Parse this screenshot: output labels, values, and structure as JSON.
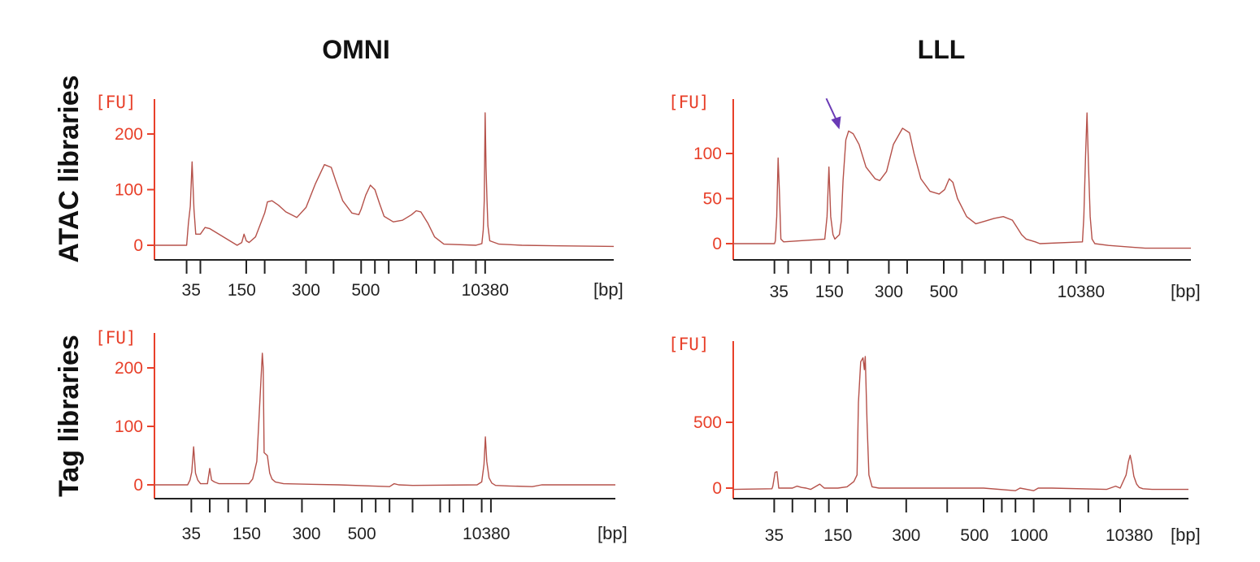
{
  "figure": {
    "column_titles": [
      "OMNI",
      "LLL"
    ],
    "row_labels": [
      "ATAC libraries",
      "Tag libraries"
    ],
    "colors": {
      "axis_y": "#e8402a",
      "trace": "#b5514a",
      "axis_x": "#222222",
      "arrow": "#6a3ab5",
      "text": "#111111"
    }
  },
  "chart_data": [
    {
      "id": "omni-atac",
      "type": "line",
      "title": "",
      "ylabel": "[FU]",
      "xlabel": "[bp]",
      "ylim": [
        -25,
        260
      ],
      "yticks": [
        0,
        100,
        200
      ],
      "xlim": [
        0,
        100
      ],
      "tick_positions": [
        7,
        10,
        20,
        24,
        33,
        39,
        45,
        48,
        51,
        57,
        61,
        65,
        70,
        72
      ],
      "tick_labels": [
        {
          "label": "35",
          "at": 8
        },
        {
          "label": "150",
          "at": 19
        },
        {
          "label": "300",
          "at": 33
        },
        {
          "label": "500",
          "at": 46
        },
        {
          "label": "10380",
          "at": 72
        }
      ],
      "series": [
        {
          "x": [
            0,
            7,
            7.4,
            7.8,
            8.2,
            8.6,
            9,
            10,
            11,
            12,
            18,
            19,
            19.5,
            20,
            20.6,
            22,
            24,
            24.6,
            25.6,
            27,
            28.6,
            31,
            33,
            35,
            37,
            38.5,
            39.5,
            41,
            43,
            44.5,
            45,
            46,
            47,
            48,
            49,
            50,
            52,
            54,
            56,
            57,
            58,
            59.5,
            61,
            63,
            70,
            71.3,
            71.6,
            71.8,
            72,
            72.2,
            72.4,
            72.6,
            73,
            75,
            80,
            88,
            100
          ],
          "y": [
            0,
            0,
            40,
            70,
            150,
            65,
            20,
            20,
            32,
            30,
            0,
            5,
            20,
            8,
            5,
            15,
            58,
            78,
            80,
            72,
            60,
            50,
            68,
            110,
            145,
            140,
            115,
            80,
            58,
            55,
            65,
            90,
            108,
            100,
            75,
            52,
            42,
            45,
            55,
            62,
            60,
            40,
            15,
            2,
            0,
            3,
            28,
            80,
            238,
            140,
            80,
            35,
            8,
            2,
            0,
            -1,
            -2
          ]
        }
      ],
      "annotations": []
    },
    {
      "id": "lll-atac",
      "type": "line",
      "title": "",
      "ylabel": "[FU]",
      "xlabel": "[bp]",
      "ylim": [
        -25,
        162
      ],
      "yticks": [
        0,
        50,
        100
      ],
      "xlim": [
        0,
        100
      ],
      "tick_positions": [
        9,
        12,
        17,
        21,
        25,
        34,
        38,
        46,
        50,
        55,
        59,
        65,
        70,
        75,
        77
      ],
      "tick_labels": [
        {
          "label": "35",
          "at": 10
        },
        {
          "label": "150",
          "at": 21
        },
        {
          "label": "300",
          "at": 34
        },
        {
          "label": "500",
          "at": 46
        },
        {
          "label": "10380",
          "at": 76
        }
      ],
      "series": [
        {
          "x": [
            0,
            9,
            9.2,
            9.5,
            9.8,
            10.1,
            10.4,
            11,
            20,
            20.5,
            20.9,
            21.3,
            21.8,
            22.2,
            23.2,
            23.6,
            24,
            24.6,
            25.2,
            26.2,
            27.5,
            29,
            31,
            32,
            33.5,
            35,
            37,
            38.5,
            39.5,
            41,
            43,
            45,
            46.2,
            47.2,
            48,
            49,
            51,
            53,
            55,
            57,
            59,
            61,
            62,
            63,
            64,
            66,
            67,
            76.3,
            76.6,
            77,
            77.3,
            77.6,
            78,
            78.4,
            79,
            82,
            90,
            100
          ],
          "y": [
            0,
            0,
            3,
            30,
            95,
            55,
            5,
            2,
            5,
            30,
            85,
            30,
            10,
            5,
            10,
            25,
            70,
            115,
            125,
            122,
            110,
            85,
            72,
            70,
            80,
            110,
            128,
            123,
            100,
            72,
            58,
            55,
            60,
            72,
            68,
            50,
            30,
            22,
            25,
            28,
            30,
            26,
            18,
            10,
            5,
            2,
            0,
            2,
            30,
            100,
            145,
            90,
            30,
            5,
            0,
            -2,
            -5,
            -5
          ]
        }
      ],
      "annotations": [
        {
          "type": "arrow",
          "at_x": 24.6,
          "at_y": 125
        }
      ]
    },
    {
      "id": "omni-tag",
      "type": "line",
      "title": "",
      "ylabel": "[FU]",
      "xlabel": "[bp]",
      "ylim": [
        -25,
        255
      ],
      "yticks": [
        0,
        100,
        200
      ],
      "xlim": [
        0,
        100
      ],
      "tick_positions": [
        8,
        12,
        16,
        20,
        24,
        32,
        39,
        45,
        48,
        51,
        56,
        62,
        64,
        67,
        71,
        73
      ],
      "tick_labels": [
        {
          "label": "35",
          "at": 8
        },
        {
          "label": "150",
          "at": 20
        },
        {
          "label": "300",
          "at": 33
        },
        {
          "label": "500",
          "at": 45
        },
        {
          "label": "10380",
          "at": 72
        }
      ],
      "series": [
        {
          "x": [
            0,
            7.2,
            7.7,
            8.1,
            8.5,
            8.9,
            9.4,
            10,
            11.5,
            12,
            12.4,
            13,
            14,
            20.5,
            21.3,
            22.2,
            23.4,
            23.6,
            23.8,
            24.5,
            25,
            25.5,
            26.2,
            28,
            40,
            51,
            52,
            53,
            56,
            70,
            71,
            71.5,
            71.8,
            72.1,
            72.6,
            73.2,
            74,
            77,
            82,
            84,
            100
          ],
          "y": [
            0,
            0,
            8,
            22,
            65,
            20,
            8,
            2,
            2,
            28,
            8,
            5,
            2,
            2,
            10,
            40,
            225,
            200,
            55,
            50,
            20,
            10,
            5,
            2,
            0,
            -3,
            2,
            0,
            -1,
            0,
            5,
            35,
            82,
            40,
            12,
            3,
            -1,
            -2,
            -3,
            0,
            0
          ]
        }
      ],
      "annotations": []
    },
    {
      "id": "lll-tag",
      "type": "line",
      "title": "",
      "ylabel": "[FU]",
      "xlabel": "[bp]",
      "ylim": [
        -80,
        1050
      ],
      "yticks": [
        0,
        500
      ],
      "xlim": [
        0,
        100
      ],
      "tick_positions": [
        9,
        13,
        18,
        21,
        25,
        38,
        47,
        55,
        59,
        62,
        66,
        74,
        78,
        85
      ],
      "tick_labels": [
        {
          "label": "35",
          "at": 9
        },
        {
          "label": "150",
          "at": 23
        },
        {
          "label": "300",
          "at": 38
        },
        {
          "label": "500",
          "at": 53
        },
        {
          "label": "1000",
          "at": 65
        },
        {
          "label": "10380",
          "at": 87
        }
      ],
      "series": [
        {
          "x": [
            0,
            8.5,
            8.7,
            9.2,
            9.6,
            10,
            13,
            14,
            15,
            16,
            17,
            19,
            20,
            23,
            25,
            26.5,
            27.2,
            27.5,
            28,
            28.5,
            28.8,
            29,
            29.4,
            29.8,
            30.5,
            32,
            40,
            55,
            62,
            63,
            66,
            67,
            70,
            82,
            84,
            85,
            86.3,
            86.8,
            87.2,
            87.6,
            88,
            88.6,
            89.2,
            90,
            92,
            100
          ],
          "y": [
            -10,
            -5,
            15,
            120,
            125,
            0,
            0,
            15,
            5,
            0,
            -10,
            30,
            0,
            0,
            10,
            50,
            100,
            650,
            960,
            990,
            900,
            1000,
            500,
            100,
            10,
            0,
            0,
            0,
            -20,
            0,
            -20,
            0,
            0,
            -10,
            15,
            0,
            100,
            200,
            250,
            180,
            90,
            30,
            5,
            -5,
            -10,
            -10
          ]
        }
      ],
      "annotations": []
    }
  ]
}
